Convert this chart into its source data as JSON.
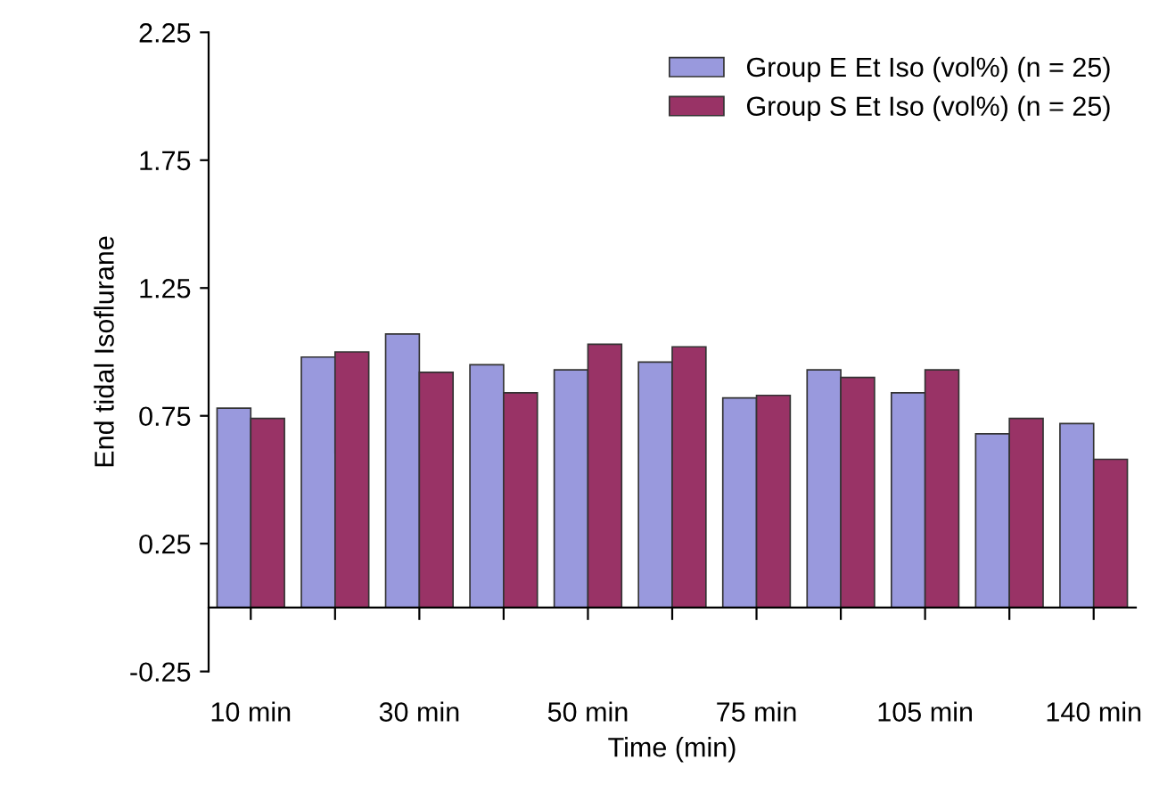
{
  "chart_data": {
    "type": "bar",
    "xlabel": "Time (min)",
    "ylabel": "End tidal Isoflurane",
    "categories": [
      "10 min",
      null,
      "30 min",
      null,
      "50 min",
      null,
      "75 min",
      null,
      "105 min",
      null,
      "140 min"
    ],
    "series": [
      {
        "name": "Group E Et Iso (vol%) (n = 25)",
        "color": "#9999dd",
        "values": [
          0.78,
          0.98,
          1.07,
          0.95,
          0.93,
          0.96,
          0.82,
          0.93,
          0.84,
          0.68,
          0.72
        ]
      },
      {
        "name": "Group S Et Iso (vol%) (n = 25)",
        "color": "#993366",
        "values": [
          0.74,
          1.0,
          0.92,
          0.84,
          1.03,
          1.02,
          0.83,
          0.9,
          0.93,
          0.74,
          0.58
        ]
      }
    ],
    "ylim": [
      -0.25,
      2.25
    ],
    "yticks": [
      -0.25,
      0.25,
      0.75,
      1.25,
      1.75,
      2.25
    ],
    "grid": false,
    "legend": "top right"
  }
}
